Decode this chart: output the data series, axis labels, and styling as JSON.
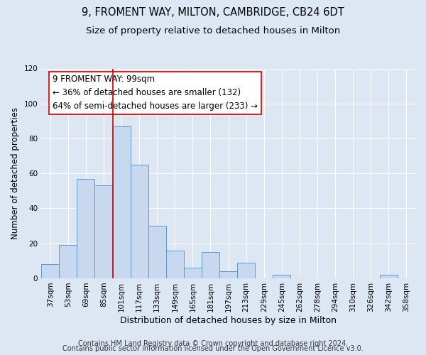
{
  "title": "9, FROMENT WAY, MILTON, CAMBRIDGE, CB24 6DT",
  "subtitle": "Size of property relative to detached houses in Milton",
  "xlabel": "Distribution of detached houses by size in Milton",
  "ylabel": "Number of detached properties",
  "bin_labels": [
    "37sqm",
    "53sqm",
    "69sqm",
    "85sqm",
    "101sqm",
    "117sqm",
    "133sqm",
    "149sqm",
    "165sqm",
    "181sqm",
    "197sqm",
    "213sqm",
    "229sqm",
    "245sqm",
    "262sqm",
    "278sqm",
    "294sqm",
    "310sqm",
    "326sqm",
    "342sqm",
    "358sqm"
  ],
  "bar_values": [
    8,
    19,
    57,
    53,
    87,
    65,
    30,
    16,
    6,
    15,
    4,
    9,
    0,
    2,
    0,
    0,
    0,
    0,
    0,
    2,
    0
  ],
  "bar_color": "#c8d9ef",
  "bar_edge_color": "#5b9bd5",
  "bar_linewidth": 0.7,
  "vline_x_index": 4,
  "vline_color": "#cc0000",
  "vline_linewidth": 1.2,
  "annotation_line1": "9 FROMENT WAY: 99sqm",
  "annotation_line2": "← 36% of detached houses are smaller (132)",
  "annotation_line3": "64% of semi-detached houses are larger (233) →",
  "annotation_box_color": "#ffffff",
  "annotation_box_edge_color": "#cc0000",
  "annotation_fontsize": 8.5,
  "ylim": [
    0,
    120
  ],
  "yticks": [
    0,
    20,
    40,
    60,
    80,
    100,
    120
  ],
  "background_color": "#dde6f3",
  "plot_background_color": "#dde6f3",
  "grid_color": "#ffffff",
  "footer_line1": "Contains HM Land Registry data © Crown copyright and database right 2024.",
  "footer_line2": "Contains public sector information licensed under the Open Government Licence v3.0.",
  "title_fontsize": 10.5,
  "subtitle_fontsize": 9.5,
  "xlabel_fontsize": 9,
  "ylabel_fontsize": 8.5,
  "tick_fontsize": 7.5,
  "footer_fontsize": 7
}
